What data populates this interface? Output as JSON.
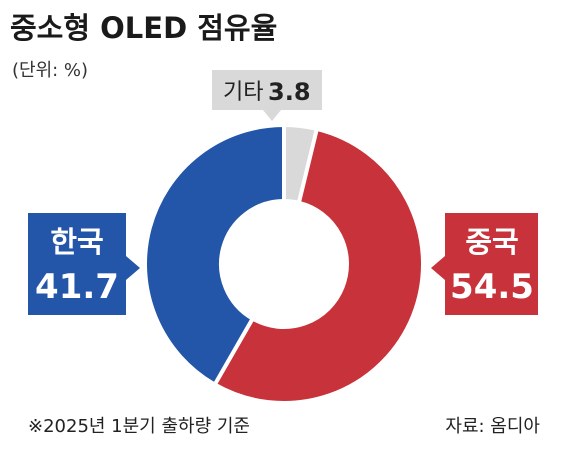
{
  "title": "중소형 OLED 점유율",
  "unit": "(단위: %)",
  "footnote": "※2025년 1분기 출하량 기준",
  "source": "자료: 옴디아",
  "colors": {
    "china": "#c8323a",
    "korea": "#2356a8",
    "other": "#d9d9d9"
  },
  "chart_data": {
    "type": "pie",
    "style": "donut",
    "slices": [
      {
        "label": "중국",
        "value": 54.5,
        "value_text": "54.5",
        "color": "#c8323a"
      },
      {
        "label": "한국",
        "value": 41.7,
        "value_text": "41.7",
        "color": "#2356a8"
      },
      {
        "label": "기타",
        "value": 3.8,
        "value_text": "3.8",
        "color": "#d9d9d9"
      }
    ]
  }
}
